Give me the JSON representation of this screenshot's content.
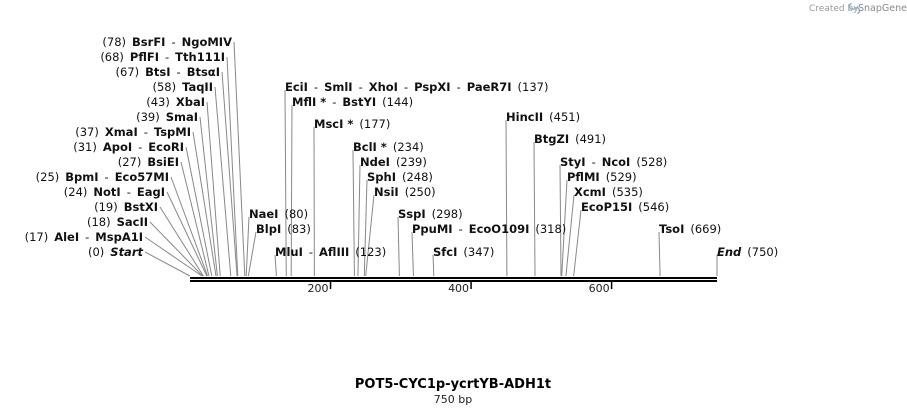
{
  "map": {
    "name": "POT5-CYC1p-ycrtYB-ADH1t",
    "length_label": "750 bp",
    "length": 750,
    "credit": "Created by",
    "brand": "SnapGene",
    "brand_icon": "snapgene-logo-icon",
    "colors": {
      "line": "#888888",
      "backbone": "#000000",
      "text": "#111111"
    },
    "ruler_ticks": [
      {
        "pos": 200,
        "label": "200"
      },
      {
        "pos": 400,
        "label": "400"
      },
      {
        "pos": 600,
        "label": "600"
      }
    ],
    "features": [
      {
        "pos": 0,
        "parts": [
          {
            "t": "(0)",
            "c": "pos"
          },
          {
            "t": "Start",
            "c": "en it"
          }
        ]
      },
      {
        "pos": 17,
        "parts": [
          {
            "t": "(17)",
            "c": "pos"
          },
          {
            "t": "AleI",
            "c": "en"
          },
          {
            "t": "-",
            "c": "pos"
          },
          {
            "t": "MspA1I",
            "c": "en"
          }
        ]
      },
      {
        "pos": 18,
        "parts": [
          {
            "t": "(18)",
            "c": "pos"
          },
          {
            "t": "SacII",
            "c": "en"
          }
        ]
      },
      {
        "pos": 19,
        "parts": [
          {
            "t": "(19)",
            "c": "pos"
          },
          {
            "t": "BstXI",
            "c": "en"
          }
        ]
      },
      {
        "pos": 24,
        "parts": [
          {
            "t": "(24)",
            "c": "pos"
          },
          {
            "t": "NotI",
            "c": "en"
          },
          {
            "t": "-",
            "c": "pos"
          },
          {
            "t": "EagI",
            "c": "en"
          }
        ]
      },
      {
        "pos": 25,
        "parts": [
          {
            "t": "(25)",
            "c": "pos"
          },
          {
            "t": "BpmI",
            "c": "en"
          },
          {
            "t": "-",
            "c": "pos"
          },
          {
            "t": "Eco57MI",
            "c": "en"
          }
        ]
      },
      {
        "pos": 27,
        "parts": [
          {
            "t": "(27)",
            "c": "pos"
          },
          {
            "t": "BsiEI",
            "c": "en"
          }
        ]
      },
      {
        "pos": 31,
        "parts": [
          {
            "t": "(31)",
            "c": "pos"
          },
          {
            "t": "ApoI",
            "c": "en"
          },
          {
            "t": "-",
            "c": "pos"
          },
          {
            "t": "EcoRI",
            "c": "en"
          }
        ]
      },
      {
        "pos": 37,
        "parts": [
          {
            "t": "(37)",
            "c": "pos"
          },
          {
            "t": "XmaI",
            "c": "en"
          },
          {
            "t": "-",
            "c": "pos"
          },
          {
            "t": "TspMI",
            "c": "en"
          }
        ]
      },
      {
        "pos": 39,
        "parts": [
          {
            "t": "(39)",
            "c": "pos"
          },
          {
            "t": "SmaI",
            "c": "en"
          }
        ]
      },
      {
        "pos": 43,
        "parts": [
          {
            "t": "(43)",
            "c": "pos"
          },
          {
            "t": "XbaI",
            "c": "en"
          }
        ]
      },
      {
        "pos": 58,
        "parts": [
          {
            "t": "(58)",
            "c": "pos"
          },
          {
            "t": "TaqII",
            "c": "en"
          }
        ]
      },
      {
        "pos": 67,
        "parts": [
          {
            "t": "(67)",
            "c": "pos"
          },
          {
            "t": "BtsI",
            "c": "en"
          },
          {
            "t": "-",
            "c": "pos"
          },
          {
            "t": "BtsαI",
            "c": "en"
          }
        ]
      },
      {
        "pos": 68,
        "parts": [
          {
            "t": "(68)",
            "c": "pos"
          },
          {
            "t": "PflFI",
            "c": "en"
          },
          {
            "t": "-",
            "c": "pos"
          },
          {
            "t": "Tth111I",
            "c": "en"
          }
        ]
      },
      {
        "pos": 78,
        "parts": [
          {
            "t": "(78)",
            "c": "pos"
          },
          {
            "t": "BsrFI",
            "c": "en"
          },
          {
            "t": "-",
            "c": "pos"
          },
          {
            "t": "NgoMIV",
            "c": "en"
          }
        ]
      },
      {
        "pos": 80,
        "parts": [
          {
            "t": "NaeI",
            "c": "en"
          },
          {
            "t": "(80)",
            "c": "pos"
          }
        ]
      },
      {
        "pos": 83,
        "parts": [
          {
            "t": "BlpI",
            "c": "en"
          },
          {
            "t": "(83)",
            "c": "pos"
          }
        ]
      },
      {
        "pos": 123,
        "parts": [
          {
            "t": "MluI",
            "c": "en"
          },
          {
            "t": "-",
            "c": "pos"
          },
          {
            "t": "AflIII",
            "c": "en"
          },
          {
            "t": "(123)",
            "c": "pos"
          }
        ]
      },
      {
        "pos": 137,
        "parts": [
          {
            "t": "EciI",
            "c": "en"
          },
          {
            "t": "-",
            "c": "pos"
          },
          {
            "t": "SmlI",
            "c": "en"
          },
          {
            "t": "-",
            "c": "pos"
          },
          {
            "t": "XhoI",
            "c": "en"
          },
          {
            "t": "-",
            "c": "pos"
          },
          {
            "t": "PspXI",
            "c": "en"
          },
          {
            "t": "-",
            "c": "pos"
          },
          {
            "t": "PaeR7I",
            "c": "en"
          },
          {
            "t": "(137)",
            "c": "pos"
          }
        ]
      },
      {
        "pos": 144,
        "parts": [
          {
            "t": "MflI *",
            "c": "en"
          },
          {
            "t": "-",
            "c": "pos"
          },
          {
            "t": "BstYI",
            "c": "en"
          },
          {
            "t": "(144)",
            "c": "pos"
          }
        ]
      },
      {
        "pos": 177,
        "parts": [
          {
            "t": "MscI *",
            "c": "en"
          },
          {
            "t": "(177)",
            "c": "pos"
          }
        ]
      },
      {
        "pos": 234,
        "parts": [
          {
            "t": "BclI *",
            "c": "en"
          },
          {
            "t": "(234)",
            "c": "pos"
          }
        ]
      },
      {
        "pos": 239,
        "parts": [
          {
            "t": "NdeI",
            "c": "en"
          },
          {
            "t": "(239)",
            "c": "pos"
          }
        ]
      },
      {
        "pos": 248,
        "parts": [
          {
            "t": "SphI",
            "c": "en"
          },
          {
            "t": "(248)",
            "c": "pos"
          }
        ]
      },
      {
        "pos": 250,
        "parts": [
          {
            "t": "NsiI",
            "c": "en"
          },
          {
            "t": "(250)",
            "c": "pos"
          }
        ]
      },
      {
        "pos": 298,
        "parts": [
          {
            "t": "SspI",
            "c": "en"
          },
          {
            "t": "(298)",
            "c": "pos"
          }
        ]
      },
      {
        "pos": 318,
        "parts": [
          {
            "t": "PpuMI",
            "c": "en"
          },
          {
            "t": "-",
            "c": "pos"
          },
          {
            "t": "EcoO109I",
            "c": "en"
          },
          {
            "t": "(318)",
            "c": "pos"
          }
        ]
      },
      {
        "pos": 347,
        "parts": [
          {
            "t": "SfcI",
            "c": "en"
          },
          {
            "t": "(347)",
            "c": "pos"
          }
        ]
      },
      {
        "pos": 451,
        "parts": [
          {
            "t": "HincII",
            "c": "en"
          },
          {
            "t": "(451)",
            "c": "pos"
          }
        ]
      },
      {
        "pos": 491,
        "parts": [
          {
            "t": "BtgZI",
            "c": "en"
          },
          {
            "t": "(491)",
            "c": "pos"
          }
        ]
      },
      {
        "pos": 528,
        "parts": [
          {
            "t": "StyI",
            "c": "en"
          },
          {
            "t": "-",
            "c": "pos"
          },
          {
            "t": "NcoI",
            "c": "en"
          },
          {
            "t": "(528)",
            "c": "pos"
          }
        ]
      },
      {
        "pos": 529,
        "parts": [
          {
            "t": "PflMI",
            "c": "en"
          },
          {
            "t": "(529)",
            "c": "pos"
          }
        ]
      },
      {
        "pos": 535,
        "parts": [
          {
            "t": "XcmI",
            "c": "en"
          },
          {
            "t": "(535)",
            "c": "pos"
          }
        ]
      },
      {
        "pos": 546,
        "parts": [
          {
            "t": "EcoP15I",
            "c": "en"
          },
          {
            "t": "(546)",
            "c": "pos"
          }
        ]
      },
      {
        "pos": 669,
        "parts": [
          {
            "t": "TsoI",
            "c": "en"
          },
          {
            "t": "(669)",
            "c": "pos"
          }
        ]
      },
      {
        "pos": 750,
        "parts": [
          {
            "t": "End",
            "c": "en it"
          },
          {
            "t": "(750)",
            "c": "pos"
          }
        ]
      }
    ]
  }
}
